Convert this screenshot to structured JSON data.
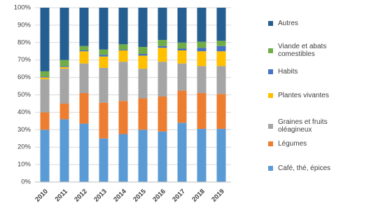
{
  "chart_data": {
    "type": "stacked_bar",
    "categories": [
      "2010",
      "2011",
      "2012",
      "2013",
      "2014",
      "2015",
      "2016",
      "2017",
      "2018",
      "2019"
    ],
    "series": [
      {
        "name": "Café, thé, épices",
        "color": "#5b9bd5",
        "values": [
          30,
          36,
          33.5,
          25,
          27.5,
          30,
          29,
          34,
          30.5,
          30.5
        ]
      },
      {
        "name": "Légumes",
        "color": "#ed7d31",
        "values": [
          10,
          9,
          17.5,
          20.5,
          19,
          18,
          20,
          18.5,
          20.5,
          20
        ]
      },
      {
        "name": "Graines et fruits oléagineux",
        "color": "#a5a5a5",
        "values": [
          19,
          20,
          17,
          20,
          22.5,
          17,
          20,
          15.5,
          15.5,
          16
        ]
      },
      {
        "name": "Plantes vivantes",
        "color": "#ffc000",
        "values": [
          1,
          1,
          7,
          6.5,
          6.5,
          7.5,
          8,
          7.5,
          8.5,
          8.5
        ]
      },
      {
        "name": "Habits",
        "color": "#4472c4",
        "values": [
          0.5,
          0.5,
          0.5,
          1,
          0.5,
          1,
          1,
          1,
          2,
          3
        ]
      },
      {
        "name": "Viande et abats comestibles",
        "color": "#70ad47",
        "values": [
          3,
          3.5,
          2.5,
          3,
          3,
          4,
          3.5,
          3.5,
          3.5,
          3
        ]
      },
      {
        "name": "Autres",
        "color": "#255e91",
        "values": [
          36.5,
          30,
          22,
          24,
          21,
          22.5,
          18.5,
          20,
          19.5,
          19
        ]
      }
    ],
    "ylim": [
      0,
      100
    ],
    "yticks": [
      {
        "value": 0,
        "label": "0%"
      },
      {
        "value": 10,
        "label": "10%"
      },
      {
        "value": 20,
        "label": "20%"
      },
      {
        "value": 30,
        "label": "30%"
      },
      {
        "value": 40,
        "label": "40%"
      },
      {
        "value": 50,
        "label": "50%"
      },
      {
        "value": 60,
        "label": "60%"
      },
      {
        "value": 70,
        "label": "70%"
      },
      {
        "value": 80,
        "label": "80%"
      },
      {
        "value": 90,
        "label": "90%"
      },
      {
        "value": 100,
        "label": "100%"
      }
    ],
    "grid": true
  }
}
